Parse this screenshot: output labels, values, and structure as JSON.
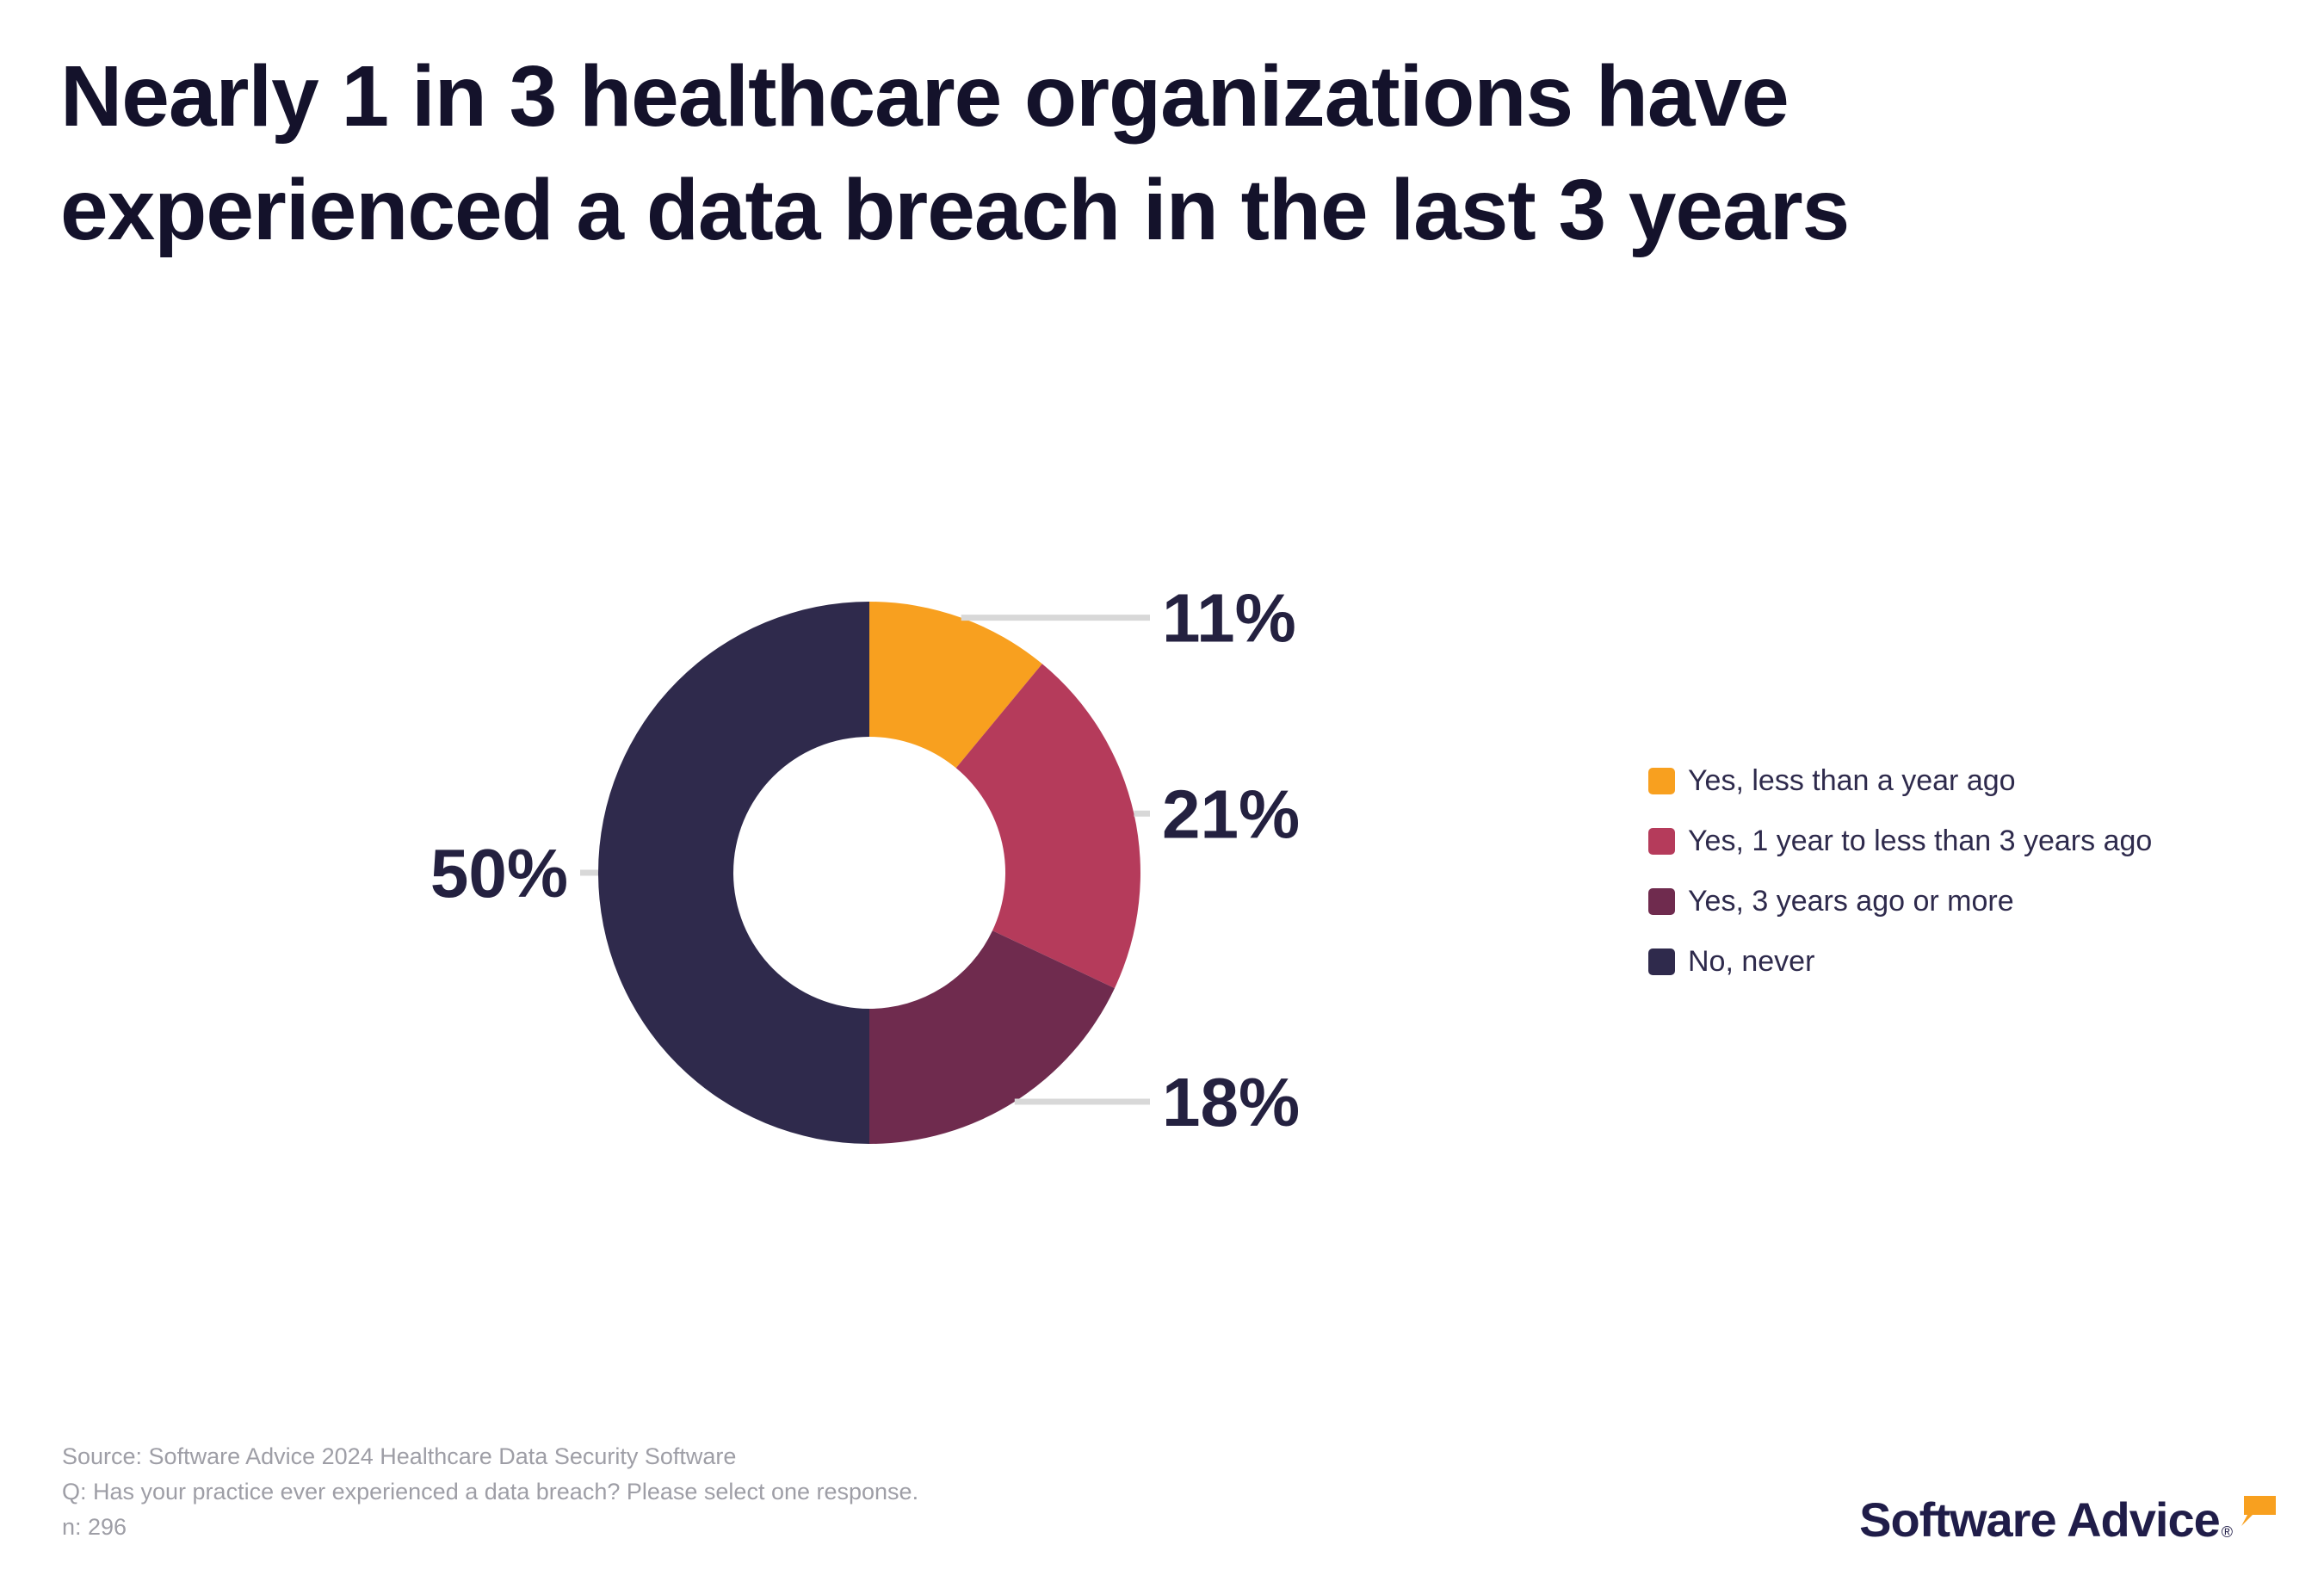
{
  "title": "Nearly 1 in 3 healthcare organizations have experienced a data breach in the last 3 years",
  "chart_data": {
    "type": "pie",
    "subtype": "donut",
    "title": "Nearly 1 in 3 healthcare organizations have experienced a data breach in the last 3 years",
    "start_angle_deg": 0,
    "direction": "clockwise",
    "value_label_format": "{value}%",
    "legend_position": "right",
    "segments": [
      {
        "label": "Yes, less than a year ago",
        "value": 11,
        "color": "#F8A01F"
      },
      {
        "label": "Yes, 1 year to less than 3 years ago",
        "value": 21,
        "color": "#B53B5B"
      },
      {
        "label": "Yes, 3 years ago or more",
        "value": 18,
        "color": "#6F2B4E"
      },
      {
        "label": "No, never",
        "value": 50,
        "color": "#2F2A4C"
      }
    ]
  },
  "footer": {
    "source": "Source: Software Advice 2024 Healthcare Data Security Software",
    "question": "Q: Has your practice ever experienced a data breach? Please select one response.",
    "n": "n: 296"
  },
  "logo": {
    "text": "Software Advice",
    "registered": "®"
  },
  "colors": {
    "background": "#ffffff",
    "title_text": "#14122b",
    "value_label_text": "#242140",
    "legend_text": "#2e2a4c",
    "footer_text": "#9e9ea6",
    "leader_line": "#d8d8d8",
    "logo_text": "#201d49",
    "logo_mark": "#F8A01F"
  }
}
